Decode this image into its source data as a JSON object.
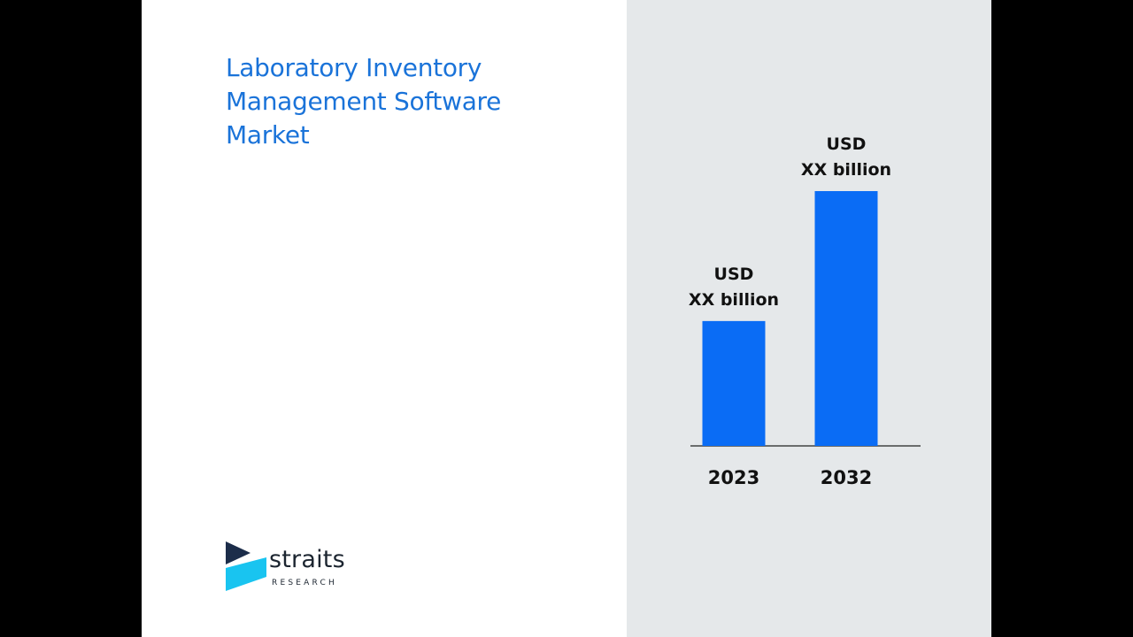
{
  "header": {
    "title_lines": [
      "Laboratory Inventory",
      "Management Software",
      "Market"
    ]
  },
  "brand": {
    "wordmark": "straits",
    "subtext": "RESEARCH",
    "colors": {
      "dark": "#1c2d4a",
      "light": "#19c4f0"
    }
  },
  "colors": {
    "title": "#1a73d9",
    "bar": "#0a6cf5",
    "panel": "#e5e8ea"
  },
  "chart_data": {
    "type": "bar",
    "categories": [
      "2023",
      "2032"
    ],
    "values": [
      0.49,
      1.0
    ],
    "value_note": "relative bar heights; actual values not disclosed",
    "data_labels": [
      [
        "USD",
        "XX billion"
      ],
      [
        "USD",
        "XX billion"
      ]
    ],
    "title": "",
    "xlabel": "",
    "ylabel": "",
    "ylim": [
      0,
      1
    ],
    "grid": false,
    "legend": "none"
  }
}
